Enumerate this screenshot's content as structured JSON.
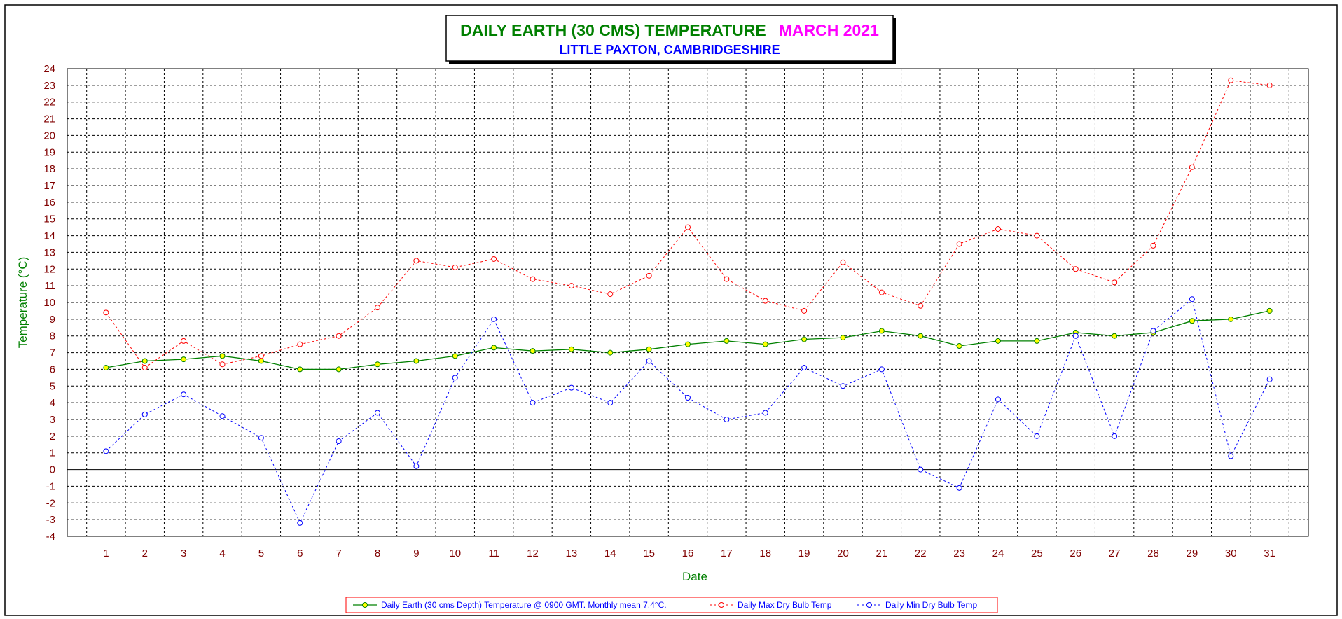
{
  "chart_data": {
    "type": "line",
    "title": "DAILY EARTH (30 CMS) TEMPERATURE",
    "title_month": "MARCH 2021",
    "subtitle": "LITTLE PAXTON, CAMBRIDGESHIRE",
    "xlabel": "Date",
    "ylabel": "Temperature (°C)",
    "ylim": [
      -4,
      24
    ],
    "grid": true,
    "legend_position": "bottom",
    "x": [
      1,
      2,
      3,
      4,
      5,
      6,
      7,
      8,
      9,
      10,
      11,
      12,
      13,
      14,
      15,
      16,
      17,
      18,
      19,
      20,
      21,
      22,
      23,
      24,
      25,
      26,
      27,
      28,
      29,
      30,
      31
    ],
    "series": [
      {
        "name": "Daily Earth (30 cms Depth) Temperature @ 0900 GMT. Monthly mean 7.4°C.",
        "color": "#008000",
        "marker_color": "#ffff00",
        "style": "solid",
        "values": [
          6.1,
          6.5,
          6.6,
          6.8,
          6.5,
          6.0,
          6.0,
          6.3,
          6.5,
          6.8,
          7.3,
          7.1,
          7.2,
          7.0,
          7.2,
          7.5,
          7.7,
          7.5,
          7.8,
          7.9,
          8.3,
          8.0,
          7.4,
          7.7,
          7.7,
          8.2,
          8.0,
          8.2,
          8.9,
          9.0,
          9.5
        ]
      },
      {
        "name": "Daily Max Dry Bulb Temp",
        "color": "#ff0000",
        "style": "dashed",
        "values": [
          9.4,
          6.1,
          7.7,
          6.3,
          6.8,
          7.5,
          8.0,
          9.7,
          12.5,
          12.1,
          12.6,
          11.4,
          11.0,
          10.5,
          11.6,
          14.5,
          11.4,
          10.1,
          9.5,
          12.4,
          10.6,
          9.8,
          13.5,
          14.4,
          14.0,
          12.0,
          11.2,
          13.4,
          18.1,
          23.3,
          23.0
        ]
      },
      {
        "name": "Daily Min Dry Bulb Temp",
        "color": "#0000ff",
        "style": "dashed",
        "values": [
          1.1,
          3.3,
          4.5,
          3.2,
          1.9,
          -3.2,
          1.7,
          3.4,
          0.2,
          5.5,
          9.0,
          4.0,
          4.9,
          4.0,
          6.5,
          4.3,
          3.0,
          3.4,
          6.1,
          5.0,
          6.0,
          0.0,
          -1.1,
          4.2,
          2.0,
          8.0,
          2.0,
          8.3,
          10.2,
          0.8,
          5.4
        ]
      }
    ]
  }
}
